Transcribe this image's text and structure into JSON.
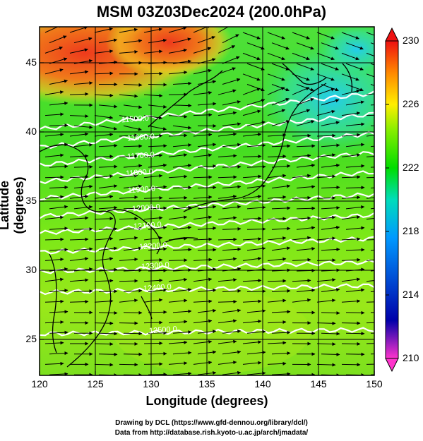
{
  "title": "MSM 03Z03Dec2024 (200.0hPa)",
  "map": {
    "xlabel": "Longitude (degrees)",
    "ylabel": "Latitude  (degrees)",
    "x_ticks": [
      "120",
      "125",
      "130",
      "135",
      "140",
      "145",
      "150"
    ],
    "y_ticks": [
      "25",
      "30",
      "35",
      "40",
      "45"
    ],
    "lon_range": [
      120,
      150
    ],
    "lat_range": [
      22.4,
      47.6
    ],
    "contour_labels": [
      "11500.0",
      "11600.0",
      "11700.0",
      "11800.0",
      "11900.0",
      "12000.0",
      "12100.0",
      "12200.0",
      "12300.0",
      "12400.0",
      "12500.0"
    ],
    "contour_color": "#ffffff",
    "wind_vector_color": "#000000",
    "coastline_color": "#000000"
  },
  "colorbar": {
    "ticks": [
      "230",
      "226",
      "222",
      "218",
      "214",
      "210"
    ],
    "range": [
      210,
      230
    ],
    "colors": [
      "#ff33cc",
      "#0000aa",
      "#0099ff",
      "#00ddbb",
      "#00dd00",
      "#88ee00",
      "#ffee00",
      "#ff8800",
      "#ee1111"
    ]
  },
  "credits": {
    "line1": "Drawing by DCL (https://www.gfd-dennou.org/library/dcl/)",
    "line2": "Data from http://database.rish.kyoto-u.ac.jp/arch/jmadata/"
  }
}
